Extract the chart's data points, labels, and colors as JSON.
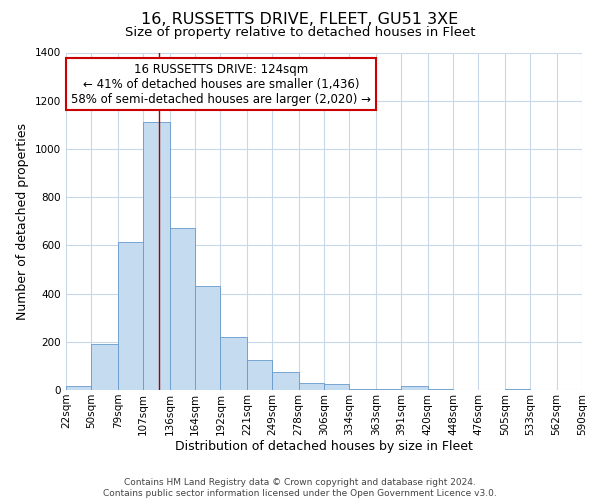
{
  "title": "16, RUSSETTS DRIVE, FLEET, GU51 3XE",
  "subtitle": "Size of property relative to detached houses in Fleet",
  "xlabel": "Distribution of detached houses by size in Fleet",
  "ylabel": "Number of detached properties",
  "bar_color": "#c5dcf0",
  "bar_edge_color": "#6699cc",
  "background_color": "#ffffff",
  "grid_color": "#c8d8e8",
  "bins": [
    22,
    50,
    79,
    107,
    136,
    164,
    192,
    221,
    249,
    278,
    306,
    334,
    363,
    391,
    420,
    448,
    476,
    505,
    533,
    562,
    590
  ],
  "counts": [
    15,
    190,
    615,
    1110,
    670,
    430,
    220,
    125,
    75,
    30,
    25,
    5,
    5,
    15,
    5,
    0,
    0,
    3,
    0,
    1
  ],
  "property_size": 124,
  "annotation_title": "16 RUSSETTS DRIVE: 124sqm",
  "annotation_line1": "← 41% of detached houses are smaller (1,436)",
  "annotation_line2": "58% of semi-detached houses are larger (2,020) →",
  "annotation_box_color": "#ffffff",
  "annotation_box_edge_color": "#cc0000",
  "vline_color": "#aa0000",
  "ylim": [
    0,
    1400
  ],
  "yticks": [
    0,
    200,
    400,
    600,
    800,
    1000,
    1200,
    1400
  ],
  "xtick_labels": [
    "22sqm",
    "50sqm",
    "79sqm",
    "107sqm",
    "136sqm",
    "164sqm",
    "192sqm",
    "221sqm",
    "249sqm",
    "278sqm",
    "306sqm",
    "334sqm",
    "363sqm",
    "391sqm",
    "420sqm",
    "448sqm",
    "476sqm",
    "505sqm",
    "533sqm",
    "562sqm",
    "590sqm"
  ],
  "footer_line1": "Contains HM Land Registry data © Crown copyright and database right 2024.",
  "footer_line2": "Contains public sector information licensed under the Open Government Licence v3.0.",
  "title_fontsize": 11.5,
  "subtitle_fontsize": 9.5,
  "axis_label_fontsize": 9,
  "tick_fontsize": 7.5,
  "annotation_fontsize": 8.5,
  "footer_fontsize": 6.5
}
